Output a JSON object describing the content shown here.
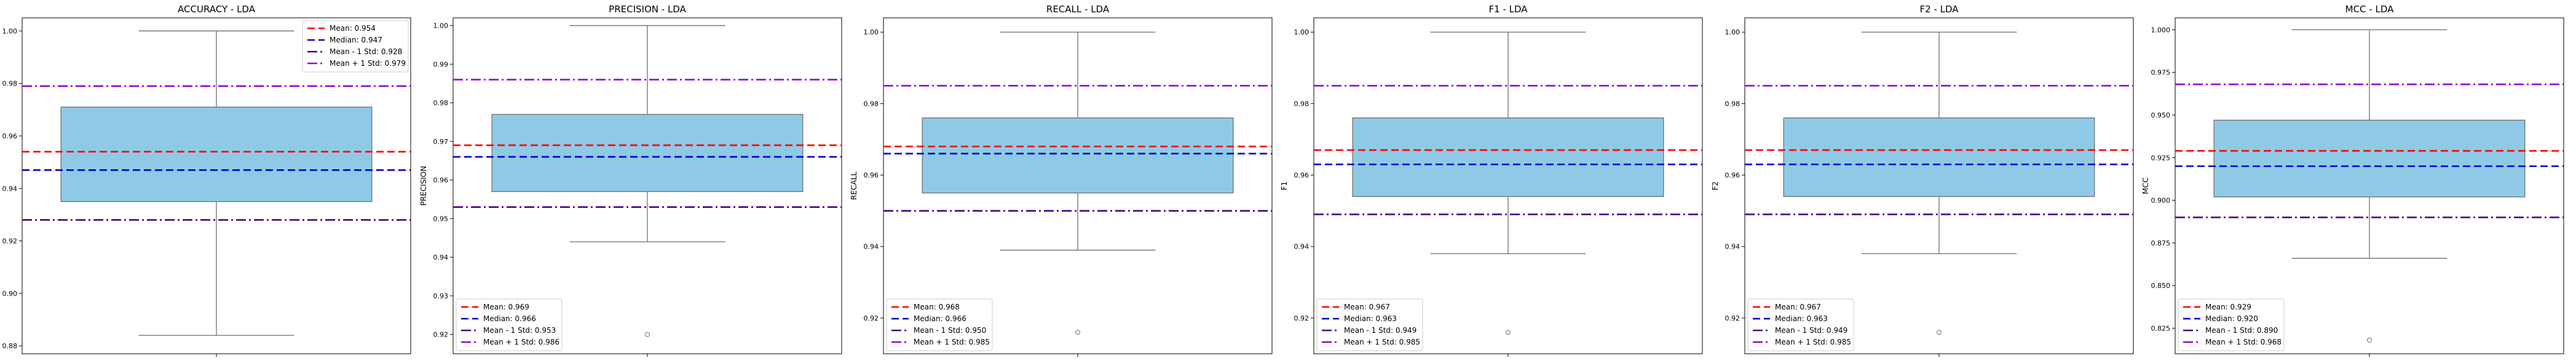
{
  "chart_data": [
    {
      "type": "box",
      "title": "ACCURACY - LDA",
      "ylabel": "ACCURACY",
      "ylim": [
        0.877,
        1.005
      ],
      "yticks": [
        0.88,
        0.9,
        0.92,
        0.94,
        0.96,
        0.98,
        1.0
      ],
      "tick_labels": [
        "0.88",
        "0.90",
        "0.92",
        "0.94",
        "0.96",
        "0.98",
        "1.00"
      ],
      "box": {
        "whisker_low": 0.884,
        "q1": 0.935,
        "q3": 0.971,
        "whisker_high": 1.0,
        "fliers": []
      },
      "lines": {
        "mean": 0.954,
        "median": 0.947,
        "mean_minus_std": 0.928,
        "mean_plus_std": 0.979
      },
      "legend_position": "top-right",
      "legend": [
        "Mean: 0.954",
        "Median: 0.947",
        "Mean - 1 Std: 0.928",
        "Mean + 1 Std: 0.979"
      ]
    },
    {
      "type": "box",
      "title": "PRECISION - LDA",
      "ylabel": "PRECISION",
      "ylim": [
        0.915,
        1.002
      ],
      "yticks": [
        0.92,
        0.93,
        0.94,
        0.95,
        0.96,
        0.97,
        0.98,
        0.99,
        1.0
      ],
      "tick_labels": [
        "0.92",
        "0.93",
        "0.94",
        "0.95",
        "0.96",
        "0.97",
        "0.98",
        "0.99",
        "1.00"
      ],
      "box": {
        "whisker_low": 0.944,
        "q1": 0.957,
        "q3": 0.977,
        "whisker_high": 1.0,
        "fliers": [
          0.92
        ]
      },
      "lines": {
        "mean": 0.969,
        "median": 0.966,
        "mean_minus_std": 0.953,
        "mean_plus_std": 0.986
      },
      "legend_position": "bottom-left",
      "legend": [
        "Mean: 0.969",
        "Median: 0.966",
        "Mean - 1 Std: 0.953",
        "Mean + 1 Std: 0.986"
      ]
    },
    {
      "type": "box",
      "title": "RECALL - LDA",
      "ylabel": "RECALL",
      "ylim": [
        0.91,
        1.004
      ],
      "yticks": [
        0.92,
        0.94,
        0.96,
        0.98,
        1.0
      ],
      "tick_labels": [
        "0.92",
        "0.94",
        "0.96",
        "0.98",
        "1.00"
      ],
      "box": {
        "whisker_low": 0.939,
        "q1": 0.955,
        "q3": 0.976,
        "whisker_high": 1.0,
        "fliers": [
          0.916
        ]
      },
      "lines": {
        "mean": 0.968,
        "median": 0.966,
        "mean_minus_std": 0.95,
        "mean_plus_std": 0.985
      },
      "legend_position": "bottom-left",
      "legend": [
        "Mean: 0.968",
        "Median: 0.966",
        "Mean - 1 Std: 0.950",
        "Mean + 1 Std: 0.985"
      ]
    },
    {
      "type": "box",
      "title": "F1 - LDA",
      "ylabel": "F1",
      "ylim": [
        0.91,
        1.004
      ],
      "yticks": [
        0.92,
        0.94,
        0.96,
        0.98,
        1.0
      ],
      "tick_labels": [
        "0.92",
        "0.94",
        "0.96",
        "0.98",
        "1.00"
      ],
      "box": {
        "whisker_low": 0.938,
        "q1": 0.954,
        "q3": 0.976,
        "whisker_high": 1.0,
        "fliers": [
          0.916
        ]
      },
      "lines": {
        "mean": 0.967,
        "median": 0.963,
        "mean_minus_std": 0.949,
        "mean_plus_std": 0.985
      },
      "legend_position": "bottom-left",
      "legend": [
        "Mean: 0.967",
        "Median: 0.963",
        "Mean - 1 Std: 0.949",
        "Mean + 1 Std: 0.985"
      ]
    },
    {
      "type": "box",
      "title": "F2 - LDA",
      "ylabel": "F2",
      "ylim": [
        0.91,
        1.004
      ],
      "yticks": [
        0.92,
        0.94,
        0.96,
        0.98,
        1.0
      ],
      "tick_labels": [
        "0.92",
        "0.94",
        "0.96",
        "0.98",
        "1.00"
      ],
      "box": {
        "whisker_low": 0.938,
        "q1": 0.954,
        "q3": 0.976,
        "whisker_high": 1.0,
        "fliers": [
          0.916
        ]
      },
      "lines": {
        "mean": 0.967,
        "median": 0.963,
        "mean_minus_std": 0.949,
        "mean_plus_std": 0.985
      },
      "legend_position": "bottom-left",
      "legend": [
        "Mean: 0.967",
        "Median: 0.963",
        "Mean - 1 Std: 0.949",
        "Mean + 1 Std: 0.985"
      ]
    },
    {
      "type": "box",
      "title": "MCC - LDA",
      "ylabel": "MCC",
      "ylim": [
        0.81,
        1.007
      ],
      "yticks": [
        0.825,
        0.85,
        0.875,
        0.9,
        0.925,
        0.95,
        0.975,
        1.0
      ],
      "tick_labels": [
        "0.825",
        "0.850",
        "0.875",
        "0.900",
        "0.925",
        "0.950",
        "0.975",
        "1.000"
      ],
      "box": {
        "whisker_low": 0.866,
        "q1": 0.902,
        "q3": 0.947,
        "whisker_high": 1.0,
        "fliers": [
          0.818
        ]
      },
      "lines": {
        "mean": 0.929,
        "median": 0.92,
        "mean_minus_std": 0.89,
        "mean_plus_std": 0.968
      },
      "legend_position": "bottom-left",
      "legend": [
        "Mean: 0.929",
        "Median: 0.920",
        "Mean - 1 Std: 0.890",
        "Mean + 1 Std: 0.968"
      ]
    }
  ],
  "colors": {
    "box_fill": "#8ecae6",
    "box_edge": "#6e6e6e",
    "mean": "#ff0000",
    "median": "#0000cc",
    "mean_minus_std": "#4b0082",
    "mean_plus_std": "#9400d3"
  }
}
